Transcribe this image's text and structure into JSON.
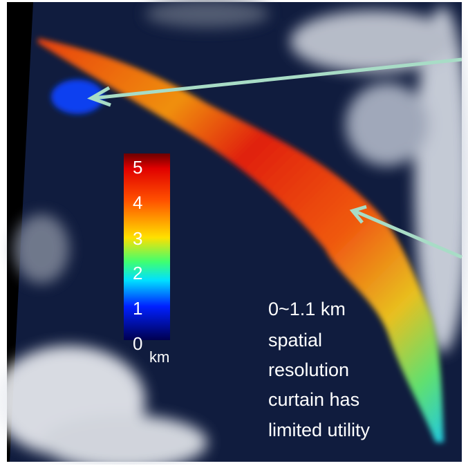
{
  "colorbar": {
    "ticks": [
      "5",
      "4",
      "3",
      "2",
      "1",
      "0"
    ],
    "unit": "km"
  },
  "annotation": {
    "lines": [
      "0~1.1 km",
      "spatial",
      "resolution",
      "curtain has",
      "limited utility"
    ]
  }
}
